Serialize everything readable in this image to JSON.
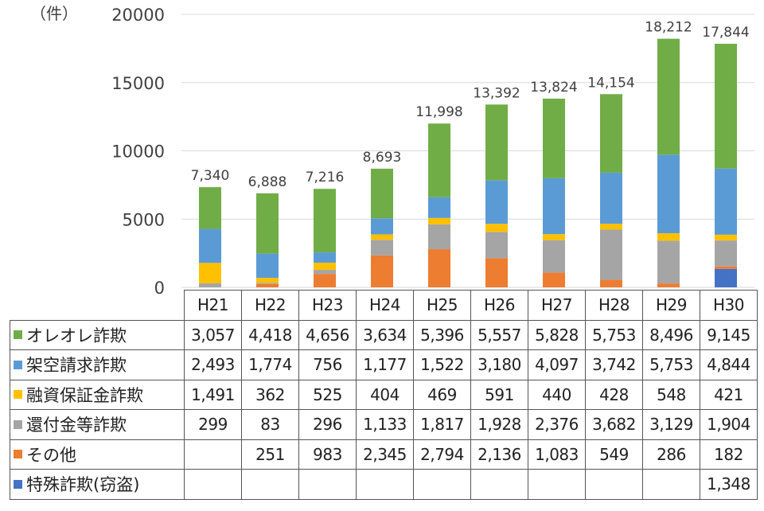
{
  "chart_data": {
    "type": "stacked-bar",
    "unit_label": "（件）",
    "y_ticks": [
      "0",
      "5000",
      "10000",
      "15000",
      "20000"
    ],
    "ylim": [
      0,
      20000
    ],
    "categories": [
      "H21",
      "H22",
      "H23",
      "H24",
      "H25",
      "H26",
      "H27",
      "H28",
      "H29",
      "H30"
    ],
    "totals": [
      "7,340",
      "6,888",
      "7,216",
      "8,693",
      "11,998",
      "13,392",
      "13,824",
      "14,154",
      "18,212",
      "17,844"
    ],
    "total_values": [
      7340,
      6888,
      7216,
      8693,
      11998,
      13392,
      13824,
      14154,
      18212,
      17844
    ],
    "series": [
      {
        "name": "特殊詐欺(窃盗)",
        "color": "#4472c4",
        "values": [
          0,
          0,
          0,
          0,
          0,
          0,
          0,
          0,
          0,
          1348
        ],
        "labels": [
          "",
          "",
          "",
          "",
          "",
          "",
          "",
          "",
          "",
          "1,348"
        ]
      },
      {
        "name": "その他",
        "color": "#ed7d31",
        "values": [
          0,
          251,
          983,
          2345,
          2794,
          2136,
          1083,
          549,
          286,
          182
        ],
        "labels": [
          "",
          "251",
          "983",
          "2,345",
          "2,794",
          "2,136",
          "1,083",
          "549",
          "286",
          "182"
        ]
      },
      {
        "name": "還付金等詐欺",
        "color": "#a5a5a5",
        "values": [
          299,
          83,
          296,
          1133,
          1817,
          1928,
          2376,
          3682,
          3129,
          1904
        ],
        "labels": [
          "299",
          "83",
          "296",
          "1,133",
          "1,817",
          "1,928",
          "2,376",
          "3,682",
          "3,129",
          "1,904"
        ]
      },
      {
        "name": "融資保証金詐欺",
        "color": "#ffc000",
        "values": [
          1491,
          362,
          525,
          404,
          469,
          591,
          440,
          428,
          548,
          421
        ],
        "labels": [
          "1,491",
          "362",
          "525",
          "404",
          "469",
          "591",
          "440",
          "428",
          "548",
          "421"
        ]
      },
      {
        "name": "架空請求詐欺",
        "color": "#5b9bd5",
        "values": [
          2493,
          1774,
          756,
          1177,
          1522,
          3180,
          4097,
          3742,
          5753,
          4844
        ],
        "labels": [
          "2,493",
          "1,774",
          "756",
          "1,177",
          "1,522",
          "3,180",
          "4,097",
          "3,742",
          "5,753",
          "4,844"
        ]
      },
      {
        "name": "オレオレ詐欺",
        "color": "#70ad47",
        "values": [
          3057,
          4418,
          4656,
          3634,
          5396,
          5557,
          5828,
          5753,
          8496,
          9145
        ],
        "labels": [
          "3,057",
          "4,418",
          "4,656",
          "3,634",
          "5,396",
          "5,557",
          "5,828",
          "5,753",
          "8,496",
          "9,145"
        ]
      }
    ],
    "table_row_order": [
      "オレオレ詐欺",
      "架空請求詐欺",
      "融資保証金詐欺",
      "還付金等詐欺",
      "その他",
      "特殊詐欺(窃盗)"
    ]
  }
}
